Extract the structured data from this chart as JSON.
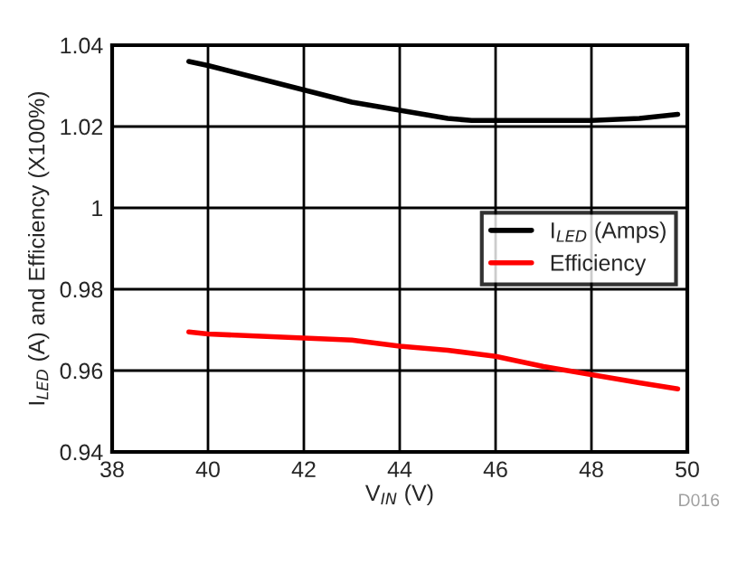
{
  "chart_data": {
    "type": "line",
    "xlabel": "V$_{IN}$ (V)",
    "ylabel": "I$_{LED}$ (A) and Efficiency (X100%)",
    "xlim": [
      38,
      50
    ],
    "xticks": [
      38,
      40,
      42,
      44,
      46,
      48,
      50
    ],
    "ylim": [
      0.94,
      1.04
    ],
    "yticks": [
      {
        "value": 0.94,
        "label": "0.94"
      },
      {
        "value": 0.96,
        "label": "0.96"
      },
      {
        "value": 0.98,
        "label": "0.98"
      },
      1,
      {
        "value": 1.02,
        "label": "1.02"
      },
      {
        "value": 1.04,
        "label": "1.04"
      }
    ],
    "grid": true,
    "legend": "right",
    "line_style": "solid",
    "marker": "none",
    "annotations": [
      "D016"
    ],
    "series": [
      {
        "name": "I$_{LED}$ (Amps)",
        "color": "#000000",
        "x": [
          39.6,
          40,
          41,
          42,
          43,
          44,
          45,
          45.5,
          46,
          47,
          48,
          49,
          49.8
        ],
        "values": [
          1.036,
          1.035,
          1.032,
          1.029,
          1.026,
          1.024,
          1.022,
          1.0215,
          1.0215,
          1.0215,
          1.0215,
          1.022,
          1.023
        ]
      },
      {
        "name": "Efficiency",
        "color": "#ff0000",
        "x": [
          39.6,
          40,
          41,
          42,
          43,
          44,
          45,
          46,
          47,
          48,
          49,
          49.8
        ],
        "values": [
          0.9695,
          0.969,
          0.9685,
          0.968,
          0.9675,
          0.966,
          0.965,
          0.9635,
          0.961,
          0.959,
          0.957,
          0.9555
        ]
      }
    ]
  }
}
